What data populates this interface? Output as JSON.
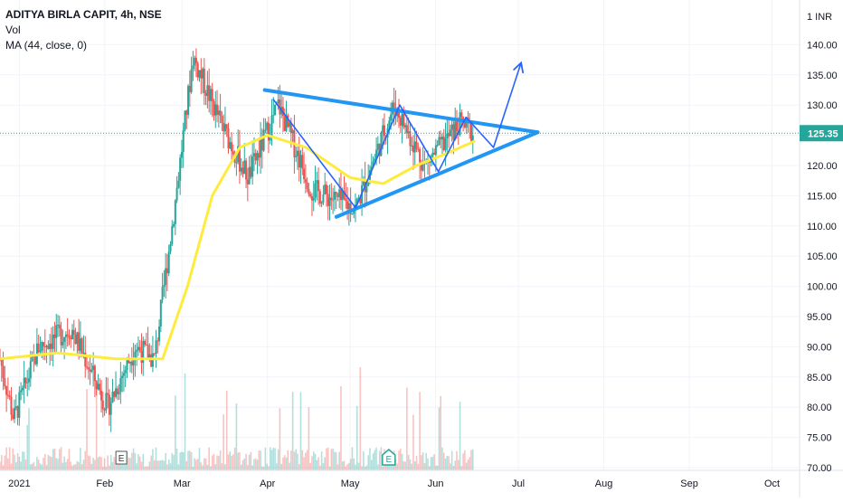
{
  "legend": {
    "title": "ADITYA BIRLA CAPIT, 4h, NSE",
    "vol": "Vol",
    "ma": "MA (44, close, 0)"
  },
  "currency": "1 INR",
  "colors": {
    "up": "#26a69a",
    "down": "#ef5350",
    "ma": "#ffeb3b",
    "pattern": "#2962ff",
    "trend": "#2196f3",
    "last_price_line": "#26a69a",
    "grid": "#f0f3fa",
    "axis_text": "#131722"
  },
  "chart_data": {
    "type": "candlestick",
    "ylim": [
      70,
      145
    ],
    "price_ticks": [
      "140.00",
      "135.00",
      "130.00",
      "125.00",
      "120.00",
      "115.00",
      "110.00",
      "105.00",
      "100.00",
      "95.00",
      "90.00",
      "85.00",
      "80.00",
      "75.00",
      "70.00"
    ],
    "last_price": 125.35,
    "last_price_label": "125.35",
    "x_labels": [
      {
        "label": "2021",
        "date": "2021-01-01"
      },
      {
        "label": "Feb",
        "date": "2021-02-01"
      },
      {
        "label": "Mar",
        "date": "2021-03-01"
      },
      {
        "label": "Apr",
        "date": "2021-04-01"
      },
      {
        "label": "May",
        "date": "2021-05-01"
      },
      {
        "label": "Jun",
        "date": "2021-06-01"
      },
      {
        "label": "Jul",
        "date": "2021-07-01"
      },
      {
        "label": "Aug",
        "date": "2021-08-01"
      },
      {
        "label": "Sep",
        "date": "2021-09-01"
      },
      {
        "label": "Oct",
        "date": "2021-10-01"
      }
    ],
    "x_range": [
      "2020-12-25",
      "2021-10-11"
    ],
    "ohlc_anchors": [
      {
        "date": "2020-12-25",
        "price": 88
      },
      {
        "date": "2020-12-30",
        "price": 78
      },
      {
        "date": "2021-01-08",
        "price": 90
      },
      {
        "date": "2021-01-20",
        "price": 93
      },
      {
        "date": "2021-02-02",
        "price": 80
      },
      {
        "date": "2021-02-12",
        "price": 90
      },
      {
        "date": "2021-02-19",
        "price": 88
      },
      {
        "date": "2021-02-26",
        "price": 112
      },
      {
        "date": "2021-03-05",
        "price": 138
      },
      {
        "date": "2021-03-15",
        "price": 127
      },
      {
        "date": "2021-03-25",
        "price": 118
      },
      {
        "date": "2021-04-05",
        "price": 130
      },
      {
        "date": "2021-04-17",
        "price": 116
      },
      {
        "date": "2021-05-03",
        "price": 113
      },
      {
        "date": "2021-05-17",
        "price": 130
      },
      {
        "date": "2021-05-28",
        "price": 120
      },
      {
        "date": "2021-06-10",
        "price": 127
      },
      {
        "date": "2021-06-15",
        "price": 125.35
      }
    ],
    "ma_line": [
      {
        "date": "2020-12-25",
        "value": 88
      },
      {
        "date": "2021-01-15",
        "value": 89
      },
      {
        "date": "2021-02-05",
        "value": 88
      },
      {
        "date": "2021-02-22",
        "value": 88
      },
      {
        "date": "2021-03-03",
        "value": 100
      },
      {
        "date": "2021-03-12",
        "value": 115
      },
      {
        "date": "2021-03-22",
        "value": 123
      },
      {
        "date": "2021-04-01",
        "value": 125
      },
      {
        "date": "2021-04-15",
        "value": 123
      },
      {
        "date": "2021-05-01",
        "value": 118
      },
      {
        "date": "2021-05-13",
        "value": 117
      },
      {
        "date": "2021-05-25",
        "value": 120
      },
      {
        "date": "2021-06-05",
        "value": 122
      },
      {
        "date": "2021-06-15",
        "value": 124
      }
    ],
    "trendlines": [
      {
        "from": {
          "date": "2021-03-31",
          "price": 132.5
        },
        "to": {
          "date": "2021-07-08",
          "price": 125.5
        }
      },
      {
        "from": {
          "date": "2021-04-26",
          "price": 111.5
        },
        "to": {
          "date": "2021-07-08",
          "price": 125.5
        }
      }
    ],
    "pattern_path": [
      {
        "date": "2021-04-03",
        "price": 131
      },
      {
        "date": "2021-05-03",
        "price": 113
      },
      {
        "date": "2021-05-19",
        "price": 130
      },
      {
        "date": "2021-06-02",
        "price": 119
      },
      {
        "date": "2021-06-12",
        "price": 128
      },
      {
        "date": "2021-06-22",
        "price": 123
      },
      {
        "date": "2021-07-02",
        "price": 137
      }
    ],
    "event_markers": [
      {
        "label": "E",
        "date": "2021-02-07",
        "style": "neutral"
      },
      {
        "label": "E",
        "date": "2021-05-15",
        "style": "earnings-up"
      }
    ]
  }
}
